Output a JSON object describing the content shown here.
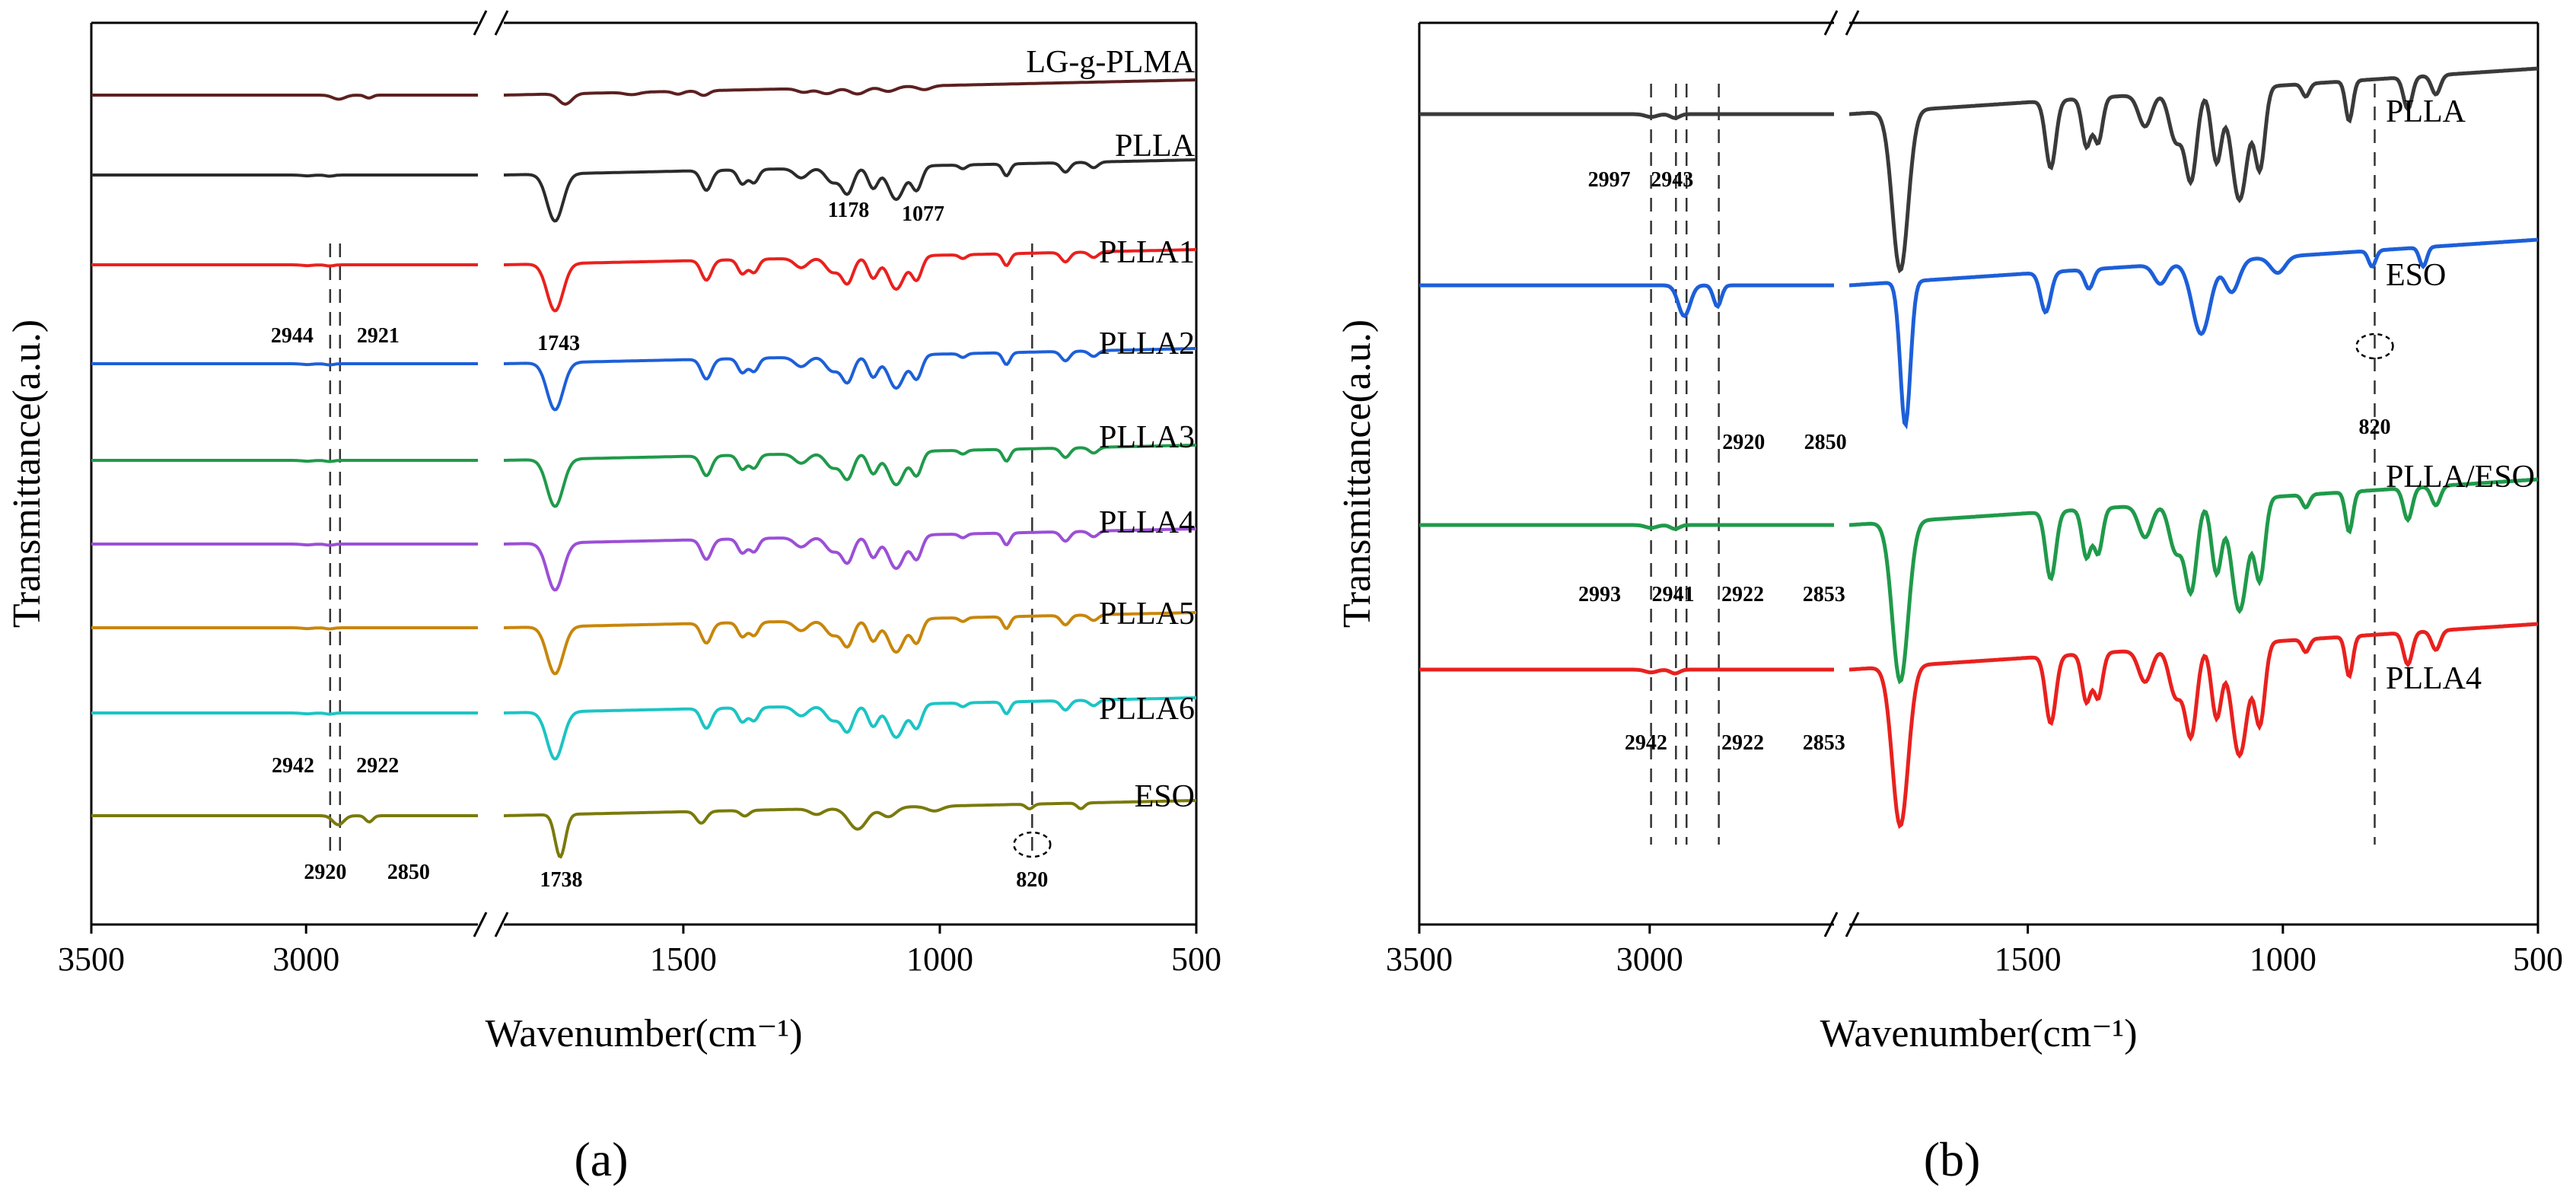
{
  "figure": {
    "panel_labels": [
      "(a)",
      "(b)"
    ]
  },
  "chart_data": [
    {
      "panel": "(a)",
      "type": "line",
      "xlabel": "Wavenumber(cm⁻¹)",
      "ylabel": "Transmittance(a.u.)",
      "xlim": [
        3500,
        500
      ],
      "x_ticks": [
        3500,
        3000,
        1500,
        1000,
        500
      ],
      "axis_break": [
        2600,
        1850
      ],
      "grid": false,
      "legend": "labels beside each curve on the right",
      "series": [
        {
          "name": "LG-g-PLMA",
          "color": "#5c2020"
        },
        {
          "name": "PLLA",
          "color": "#2b2b2b"
        },
        {
          "name": "PLLA1",
          "color": "#e8211e"
        },
        {
          "name": "PLLA2",
          "color": "#1d5fd8"
        },
        {
          "name": "PLLA3",
          "color": "#1f9a4a"
        },
        {
          "name": "PLLA4",
          "color": "#9b4fd6"
        },
        {
          "name": "PLLA5",
          "color": "#c8860a"
        },
        {
          "name": "PLLA6",
          "color": "#1cc4c4"
        },
        {
          "name": "ESO",
          "color": "#7a7a0c"
        }
      ],
      "annotations": [
        "2944",
        "2921",
        "1743",
        "1178",
        "1077",
        "2942",
        "2922",
        "2920",
        "2850",
        "1738",
        "820"
      ],
      "dashed_lines_x": [
        2944,
        2921,
        820
      ]
    },
    {
      "panel": "(b)",
      "type": "line",
      "xlabel": "Wavenumber(cm⁻¹)",
      "ylabel": "Transmittance(a.u.)",
      "xlim": [
        3500,
        500
      ],
      "x_ticks": [
        3500,
        3000,
        1500,
        1000,
        500
      ],
      "axis_break": [
        2600,
        1850
      ],
      "grid": false,
      "legend": "labels beside each curve on the right",
      "series": [
        {
          "name": "PLLA",
          "color": "#3a3a3a"
        },
        {
          "name": "ESO",
          "color": "#1d5fd8"
        },
        {
          "name": "PLLA/ESO",
          "color": "#1f9a4a"
        },
        {
          "name": "PLLA4",
          "color": "#e8211e"
        }
      ],
      "annotations": [
        "2997",
        "2943",
        "2920",
        "2850",
        "820",
        "2993",
        "2941",
        "2922",
        "2853",
        "2942",
        "2922",
        "2853"
      ],
      "dashed_lines_x": [
        2997,
        2943,
        2920,
        2850,
        820
      ]
    }
  ]
}
